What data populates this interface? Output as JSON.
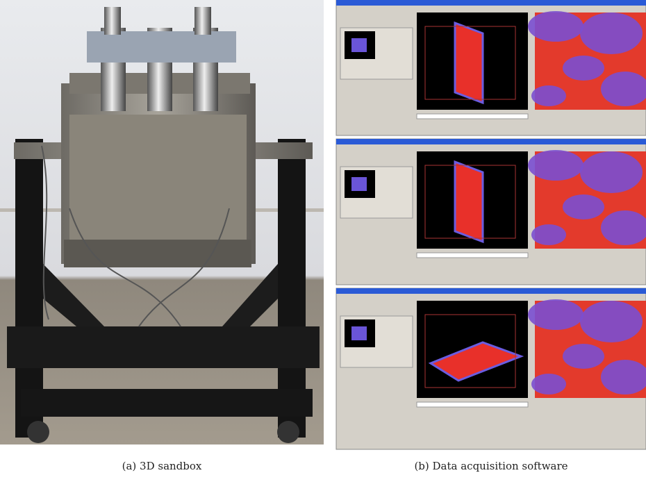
{
  "captions": {
    "a": "(a) 3D sandbox",
    "b": "(b) Data acquisition software"
  }
}
